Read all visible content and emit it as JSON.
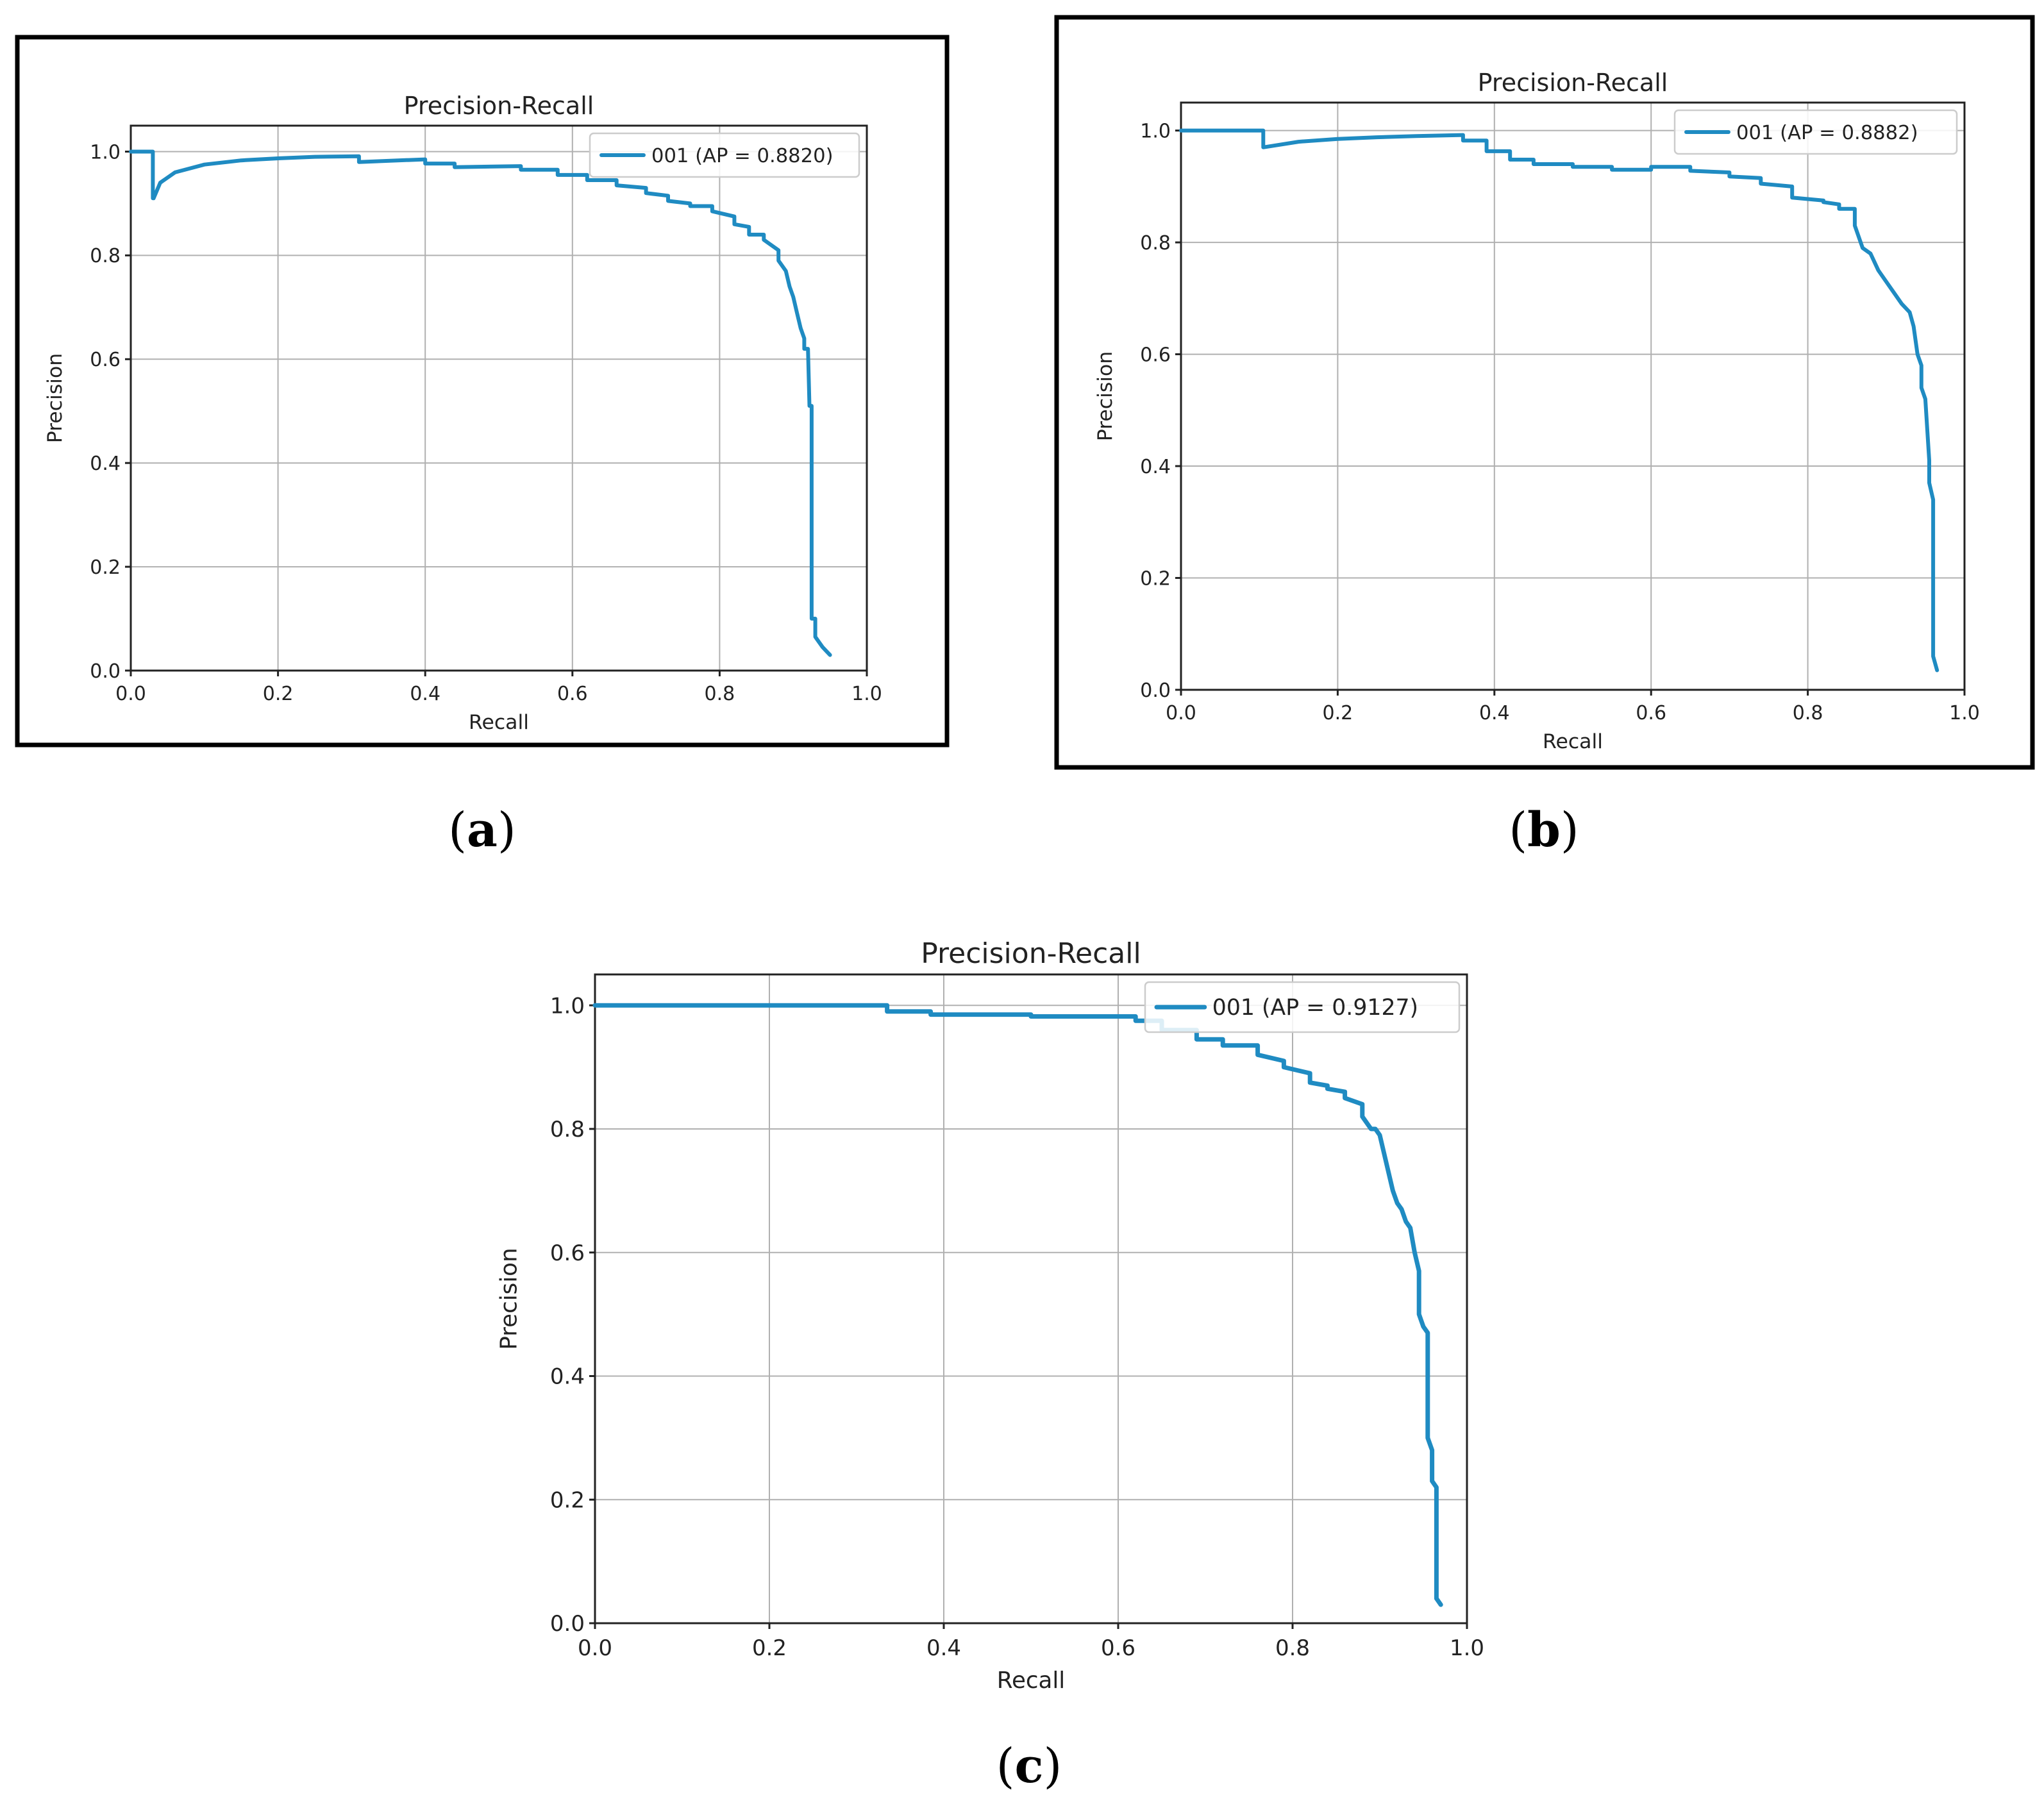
{
  "figure": {
    "captions": [
      "(a)",
      "(b)",
      "(c)"
    ],
    "caption_letters": [
      "a",
      "b",
      "c"
    ]
  },
  "chart_data": [
    {
      "type": "line",
      "panel": "a",
      "title": "Precision-Recall",
      "xlabel": "Recall",
      "ylabel": "Precision",
      "xlim": [
        0.0,
        1.0
      ],
      "ylim": [
        0.0,
        1.05
      ],
      "xticks": [
        0.0,
        0.2,
        0.4,
        0.6,
        0.8,
        1.0
      ],
      "xtick_labels": [
        "0.0",
        "0.2",
        "0.4",
        "0.6",
        "0.8",
        "1.0"
      ],
      "yticks": [
        0.0,
        0.2,
        0.4,
        0.6,
        0.8,
        1.0
      ],
      "ytick_labels": [
        "0.0",
        "0.2",
        "0.4",
        "0.6",
        "0.8",
        "1.0"
      ],
      "grid": true,
      "legend_position": "top-right",
      "series": [
        {
          "name": "001 (AP = 0.8820)",
          "color": "#1f8bc2",
          "x": [
            0.0,
            0.03,
            0.03,
            0.031,
            0.04,
            0.06,
            0.1,
            0.15,
            0.2,
            0.25,
            0.31,
            0.31,
            0.4,
            0.4,
            0.44,
            0.44,
            0.53,
            0.53,
            0.58,
            0.58,
            0.62,
            0.62,
            0.66,
            0.66,
            0.7,
            0.7,
            0.73,
            0.73,
            0.76,
            0.76,
            0.79,
            0.79,
            0.82,
            0.82,
            0.84,
            0.84,
            0.86,
            0.86,
            0.88,
            0.88,
            0.89,
            0.895,
            0.9,
            0.905,
            0.91,
            0.915,
            0.915,
            0.92,
            0.922,
            0.925,
            0.925,
            0.93,
            0.93,
            0.94,
            0.95
          ],
          "y": [
            1.0,
            1.0,
            0.91,
            0.91,
            0.94,
            0.96,
            0.975,
            0.983,
            0.987,
            0.99,
            0.991,
            0.98,
            0.985,
            0.977,
            0.977,
            0.97,
            0.972,
            0.965,
            0.965,
            0.955,
            0.955,
            0.945,
            0.945,
            0.935,
            0.93,
            0.92,
            0.915,
            0.905,
            0.9,
            0.895,
            0.895,
            0.885,
            0.875,
            0.86,
            0.855,
            0.84,
            0.84,
            0.83,
            0.81,
            0.79,
            0.77,
            0.74,
            0.72,
            0.69,
            0.66,
            0.64,
            0.62,
            0.62,
            0.51,
            0.51,
            0.1,
            0.1,
            0.065,
            0.045,
            0.03
          ]
        }
      ]
    },
    {
      "type": "line",
      "panel": "b",
      "title": "Precision-Recall",
      "xlabel": "Recall",
      "ylabel": "Precision",
      "xlim": [
        0.0,
        1.0
      ],
      "ylim": [
        0.0,
        1.05
      ],
      "xticks": [
        0.0,
        0.2,
        0.4,
        0.6,
        0.8,
        1.0
      ],
      "xtick_labels": [
        "0.0",
        "0.2",
        "0.4",
        "0.6",
        "0.8",
        "1.0"
      ],
      "yticks": [
        0.0,
        0.2,
        0.4,
        0.6,
        0.8,
        1.0
      ],
      "ytick_labels": [
        "0.0",
        "0.2",
        "0.4",
        "0.6",
        "0.8",
        "1.0"
      ],
      "grid": true,
      "legend_position": "top-right",
      "series": [
        {
          "name": "001 (AP = 0.8882)",
          "color": "#1f8bc2",
          "x": [
            0.0,
            0.105,
            0.105,
            0.15,
            0.2,
            0.25,
            0.3,
            0.36,
            0.36,
            0.39,
            0.39,
            0.42,
            0.42,
            0.45,
            0.45,
            0.5,
            0.5,
            0.55,
            0.55,
            0.6,
            0.6,
            0.65,
            0.65,
            0.7,
            0.7,
            0.74,
            0.74,
            0.78,
            0.78,
            0.82,
            0.82,
            0.84,
            0.84,
            0.86,
            0.86,
            0.87,
            0.88,
            0.89,
            0.9,
            0.91,
            0.92,
            0.93,
            0.935,
            0.94,
            0.945,
            0.945,
            0.95,
            0.955,
            0.955,
            0.96,
            0.96,
            0.965
          ],
          "y": [
            1.0,
            1.0,
            0.97,
            0.98,
            0.985,
            0.988,
            0.99,
            0.992,
            0.982,
            0.982,
            0.963,
            0.963,
            0.948,
            0.948,
            0.94,
            0.94,
            0.935,
            0.935,
            0.93,
            0.93,
            0.935,
            0.935,
            0.928,
            0.925,
            0.918,
            0.915,
            0.905,
            0.9,
            0.88,
            0.875,
            0.872,
            0.868,
            0.86,
            0.86,
            0.83,
            0.79,
            0.78,
            0.75,
            0.73,
            0.71,
            0.69,
            0.675,
            0.65,
            0.6,
            0.58,
            0.54,
            0.52,
            0.41,
            0.37,
            0.34,
            0.06,
            0.035
          ]
        }
      ]
    },
    {
      "type": "line",
      "panel": "c",
      "title": "Precision-Recall",
      "xlabel": "Recall",
      "ylabel": "Precision",
      "xlim": [
        0.0,
        1.0
      ],
      "ylim": [
        0.0,
        1.05
      ],
      "xticks": [
        0.0,
        0.2,
        0.4,
        0.6,
        0.8,
        1.0
      ],
      "xtick_labels": [
        "0.0",
        "0.2",
        "0.4",
        "0.6",
        "0.8",
        "1.0"
      ],
      "yticks": [
        0.0,
        0.2,
        0.4,
        0.6,
        0.8,
        1.0
      ],
      "ytick_labels": [
        "0.0",
        "0.2",
        "0.4",
        "0.6",
        "0.8",
        "1.0"
      ],
      "grid": true,
      "legend_position": "top-right",
      "series": [
        {
          "name": "001 (AP = 0.9127)",
          "color": "#1f8bc2",
          "x": [
            0.0,
            0.1,
            0.2,
            0.335,
            0.335,
            0.385,
            0.385,
            0.5,
            0.5,
            0.62,
            0.62,
            0.65,
            0.65,
            0.69,
            0.69,
            0.72,
            0.72,
            0.76,
            0.76,
            0.79,
            0.79,
            0.82,
            0.82,
            0.84,
            0.84,
            0.86,
            0.86,
            0.88,
            0.88,
            0.89,
            0.895,
            0.9,
            0.905,
            0.91,
            0.915,
            0.92,
            0.925,
            0.93,
            0.935,
            0.94,
            0.945,
            0.945,
            0.95,
            0.955,
            0.955,
            0.96,
            0.96,
            0.965,
            0.965,
            0.97
          ],
          "y": [
            1.0,
            1.0,
            1.0,
            1.0,
            0.99,
            0.99,
            0.985,
            0.985,
            0.982,
            0.982,
            0.975,
            0.975,
            0.96,
            0.96,
            0.945,
            0.945,
            0.935,
            0.935,
            0.92,
            0.91,
            0.9,
            0.89,
            0.875,
            0.87,
            0.865,
            0.86,
            0.85,
            0.84,
            0.82,
            0.8,
            0.8,
            0.79,
            0.76,
            0.73,
            0.7,
            0.68,
            0.67,
            0.65,
            0.64,
            0.6,
            0.57,
            0.5,
            0.48,
            0.47,
            0.3,
            0.28,
            0.23,
            0.22,
            0.04,
            0.03
          ]
        }
      ]
    }
  ]
}
